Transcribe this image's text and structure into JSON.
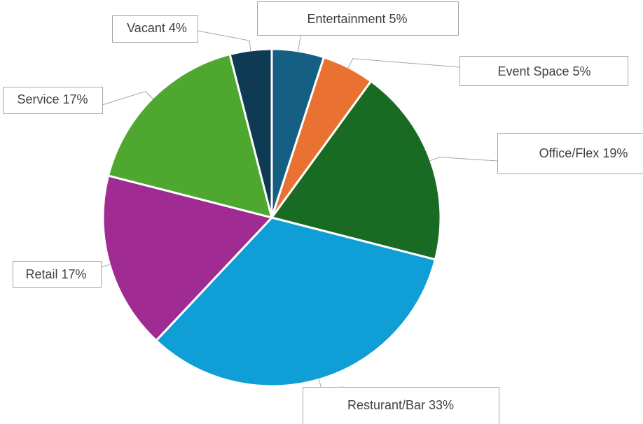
{
  "chart_data": {
    "type": "pie",
    "categories": [
      "Entertainment",
      "Event Space",
      "Office/Flex",
      "Resturant/Bar",
      "Retail",
      "Service",
      "Vacant"
    ],
    "values": [
      5,
      5,
      19,
      33,
      17,
      17,
      4
    ],
    "value_labels": [
      "5%",
      "5%",
      "19%",
      "33%",
      "17%",
      "17%",
      "4%"
    ],
    "colors": [
      "#156082",
      "#e97132",
      "#196b24",
      "#0f9ed5",
      "#a02b93",
      "#4ea72e",
      "#0e3a54"
    ]
  }
}
